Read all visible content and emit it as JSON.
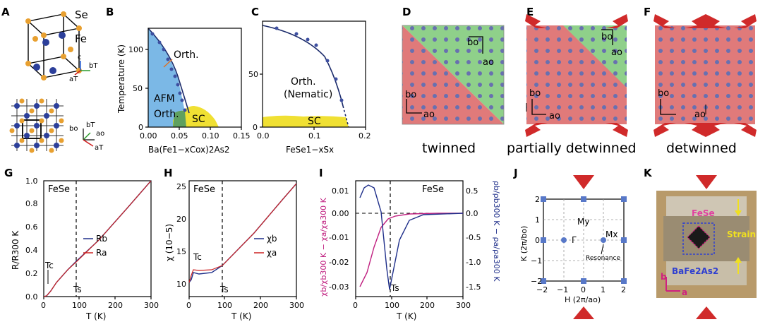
{
  "panels": {
    "A": {
      "label": "A",
      "atom_se": "Se",
      "atom_fe": "Fe",
      "axis_c": "c",
      "axis_at": "aT",
      "axis_bt": "bT",
      "axis_bo": "bo",
      "axis_bt2": "bT",
      "axis_ao": "ao",
      "axis_at2": "aT"
    },
    "B": {
      "label": "B",
      "ylabel": "Temperature (K)",
      "xlabel": "Ba(Fe1−xCox)2As2",
      "xticks": [
        "0.00",
        "0.05",
        "0.10",
        "0.15"
      ],
      "yticks": [
        "0",
        "50",
        "100"
      ],
      "orth": "Orth.",
      "afm": "AFM",
      "orth2": "Orth.",
      "sc": "SC"
    },
    "C": {
      "label": "C",
      "xlabel": "FeSe1−xSx",
      "xticks": [
        "0.0",
        "0.1",
        "0.2"
      ],
      "yticks": [
        "0",
        "50"
      ],
      "orth": "Orth.",
      "nematic": "(Nematic)",
      "sc": "SC"
    },
    "D": {
      "label": "D",
      "caption": "twinned",
      "bo": "bo",
      "ao": "ao",
      "bo2": "bo",
      "ao2": "ao"
    },
    "E": {
      "label": "E",
      "caption": "partially detwinned",
      "bo": "bo",
      "ao": "ao",
      "bo2": "bo",
      "ao2": "ao"
    },
    "F": {
      "label": "F",
      "caption": "detwinned",
      "bo": "bo",
      "ao": "ao"
    },
    "G": {
      "label": "G",
      "material": "FeSe",
      "ylabel": "R/R300 K",
      "xlabel": "T (K)",
      "xticks": [
        "0",
        "100",
        "200",
        "300"
      ],
      "yticks": [
        "0.0",
        "0.2",
        "0.4",
        "0.6",
        "0.8",
        "1.0"
      ],
      "legend": [
        "Rb",
        "Ra"
      ],
      "tc": "Tc",
      "ts": "Ts"
    },
    "H": {
      "label": "H",
      "material": "FeSe",
      "ylabel": "χ (10−5)",
      "xlabel": "T (K)",
      "xticks": [
        "0",
        "100",
        "200",
        "300"
      ],
      "yticks": [
        "10",
        "15",
        "20",
        "25"
      ],
      "legend": [
        "χb",
        "χa"
      ],
      "tc": "Tc",
      "ts": "Ts"
    },
    "I": {
      "label": "I",
      "material": "FeSe",
      "ylabel_left": "χb/χb300 K − χa/χa300 K",
      "ylabel_right": "ρb/ρb300 K − ρa/ρa300 K",
      "xlabel": "T (K)",
      "xticks": [
        "0",
        "100",
        "200",
        "300"
      ],
      "yticks_left": [
        "0.01",
        "0.00",
        "-0.01",
        "-0.02",
        "-0.03"
      ],
      "yticks_right": [
        "0.5",
        "0.0",
        "-0.5",
        "-1.0",
        "-1.5"
      ],
      "ts": "Ts"
    },
    "J": {
      "label": "J",
      "ylabel": "K (2π/bo)",
      "xlabel": "H (2π/ao)",
      "xticks": [
        "−2",
        "−1",
        "0",
        "1",
        "2"
      ],
      "yticks": [
        "−2",
        "−1",
        "0",
        "1",
        "2"
      ],
      "my": "My",
      "gamma": "Γ",
      "mx": "Mx",
      "resonance": "Resonance"
    },
    "K": {
      "label": "K",
      "fese": "FeSe",
      "strain": "Strain",
      "bafe": "BaFe2As2",
      "b": "b",
      "a": "a"
    }
  },
  "chart_data": [
    {
      "type": "line",
      "title": "G",
      "series": [
        {
          "name": "Rb",
          "color": "#1f2f8a"
        },
        {
          "name": "Ra",
          "color": "#cc2222"
        }
      ],
      "x": [
        0,
        10,
        20,
        50,
        90,
        100,
        150,
        200,
        250,
        300
      ],
      "values": [
        0,
        0.01,
        0.05,
        0.16,
        0.29,
        0.33,
        0.55,
        0.74,
        0.88,
        1.0
      ],
      "xlim": [
        0,
        300
      ],
      "ylim": [
        0,
        1
      ]
    },
    {
      "type": "line",
      "title": "H",
      "series": [
        {
          "name": "χb",
          "color": "#1f2f8a"
        },
        {
          "name": "χa",
          "color": "#cc2222"
        }
      ],
      "xlim": [
        0,
        300
      ],
      "ylim": [
        8,
        26
      ]
    },
    {
      "type": "line",
      "title": "I",
      "xlim": [
        0,
        300
      ],
      "ylim_left": [
        -0.035,
        0.014
      ],
      "ylim_right": [
        -1.7,
        0.7
      ]
    }
  ]
}
